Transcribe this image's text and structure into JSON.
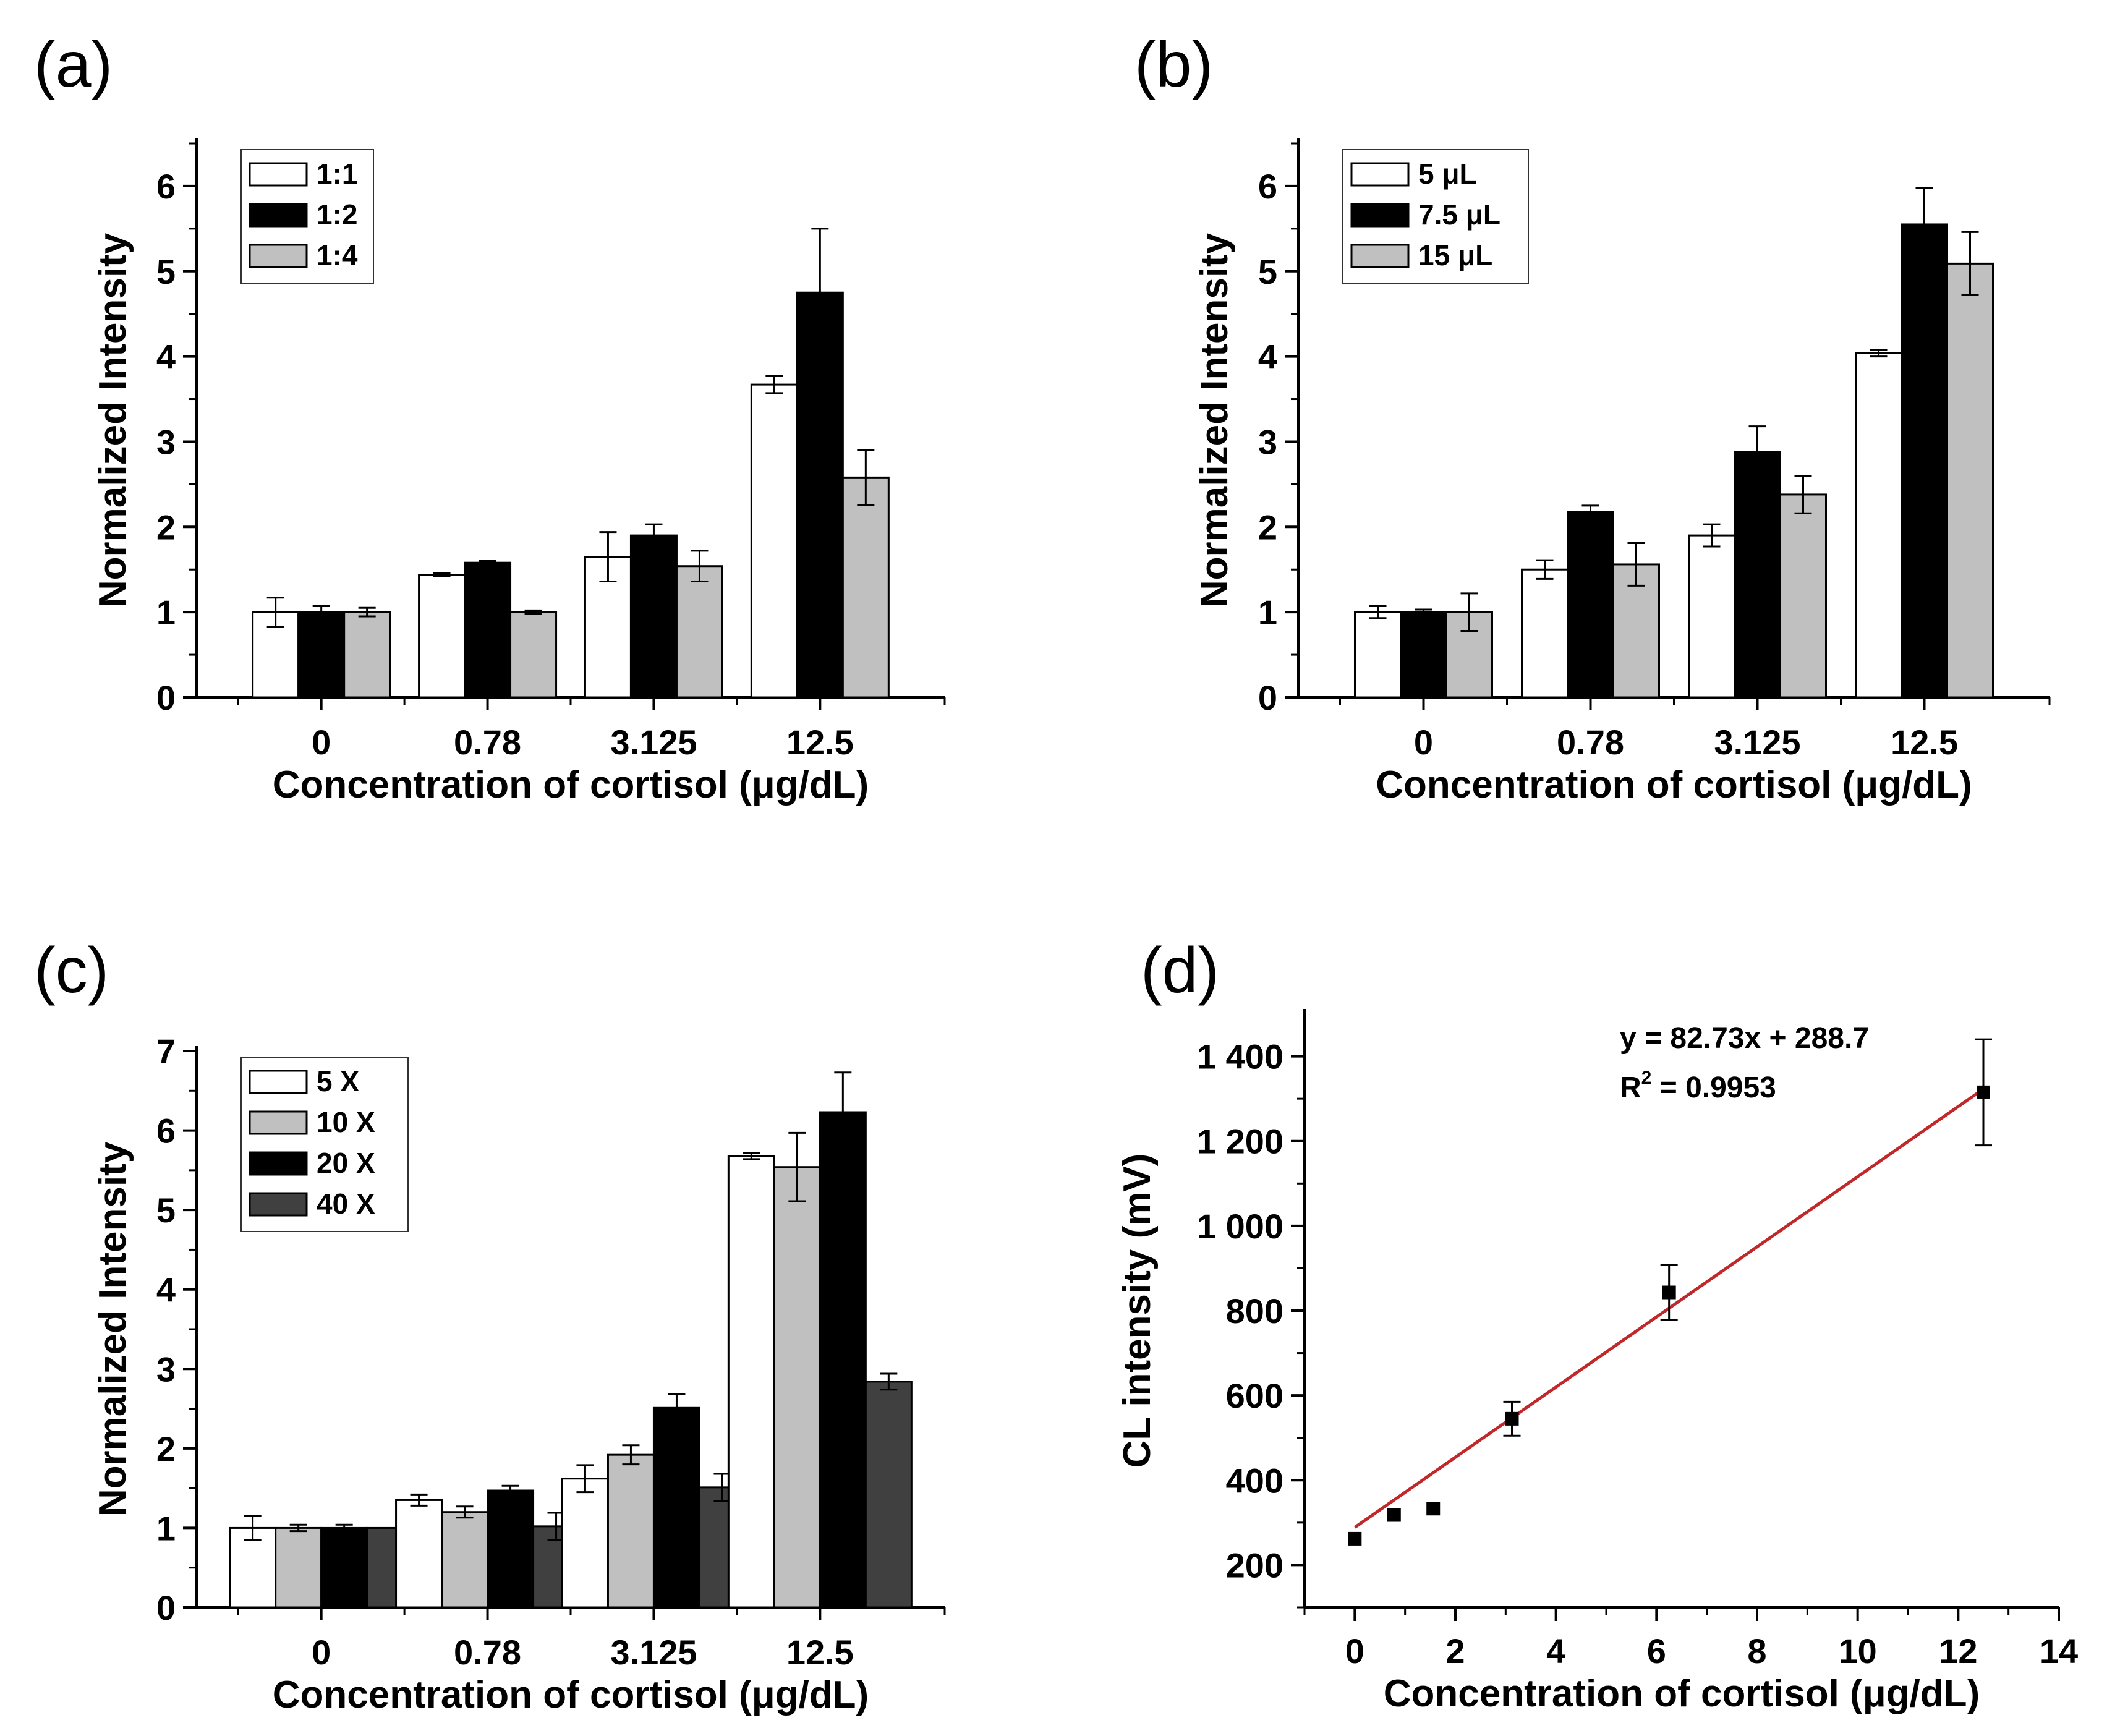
{
  "panels": [
    {
      "label": "(a)"
    },
    {
      "label": "(b)"
    },
    {
      "label": "(c)"
    },
    {
      "label": "(d)"
    }
  ],
  "chart_data": [
    {
      "type": "bar",
      "xlabel": "Concentration of cortisol (μg/dL)",
      "ylabel": "Normalized Intensity",
      "ylim": [
        0,
        6.5
      ],
      "yticks": [
        "0",
        "1",
        "2",
        "3",
        "4",
        "5",
        "6"
      ],
      "categories": [
        "0",
        "0.78",
        "3.125",
        "12.5"
      ],
      "legend_placement": "top-left",
      "series": [
        {
          "name": "1:1",
          "color": "#ffffff",
          "values": [
            1.0,
            1.44,
            1.65,
            3.67
          ],
          "errors": [
            0.17,
            0.02,
            0.29,
            0.1
          ]
        },
        {
          "name": "1:2",
          "color": "#000000",
          "values": [
            1.0,
            1.58,
            1.9,
            4.75
          ],
          "errors": [
            0.07,
            0.02,
            0.13,
            0.75
          ]
        },
        {
          "name": "1:4",
          "color": "#c0c0c0",
          "values": [
            1.0,
            1.0,
            1.54,
            2.58
          ],
          "errors": [
            0.05,
            0.02,
            0.18,
            0.32
          ]
        }
      ]
    },
    {
      "type": "bar",
      "xlabel": "Concentration of cortisol (μg/dL)",
      "ylabel": "Normalized Intensity",
      "ylim": [
        0,
        6.5
      ],
      "yticks": [
        "0",
        "1",
        "2",
        "3",
        "4",
        "5",
        "6"
      ],
      "categories": [
        "0",
        "0.78",
        "3.125",
        "12.5"
      ],
      "legend_placement": "top-left",
      "series": [
        {
          "name": "5 μL",
          "color": "#ffffff",
          "values": [
            1.0,
            1.5,
            1.9,
            4.04
          ],
          "errors": [
            0.07,
            0.11,
            0.13,
            0.04
          ]
        },
        {
          "name": "7.5 μL",
          "color": "#000000",
          "values": [
            1.0,
            2.18,
            2.88,
            5.55
          ],
          "errors": [
            0.03,
            0.07,
            0.3,
            0.43
          ]
        },
        {
          "name": "15 μL",
          "color": "#c0c0c0",
          "values": [
            1.0,
            1.56,
            2.38,
            5.09
          ],
          "errors": [
            0.22,
            0.25,
            0.22,
            0.37
          ]
        }
      ]
    },
    {
      "type": "bar",
      "xlabel": "Concentration of cortisol (μg/dL)",
      "ylabel": "Normalized Intensity",
      "ylim": [
        0,
        7
      ],
      "yticks": [
        "0",
        "1",
        "2",
        "3",
        "4",
        "5",
        "6",
        "7"
      ],
      "categories": [
        "0",
        "0.78",
        "3.125",
        "12.5"
      ],
      "legend_placement": "top-left",
      "series": [
        {
          "name": "5 X",
          "color": "#ffffff",
          "values": [
            1.0,
            1.35,
            1.62,
            5.68
          ],
          "errors": [
            0.15,
            0.07,
            0.17,
            0.04
          ]
        },
        {
          "name": "10 X",
          "color": "#c0c0c0",
          "values": [
            1.0,
            1.2,
            1.92,
            5.54
          ],
          "errors": [
            0.04,
            0.07,
            0.12,
            0.43
          ]
        },
        {
          "name": "20 X",
          "color": "#000000",
          "values": [
            1.0,
            1.47,
            2.51,
            6.23
          ],
          "errors": [
            0.04,
            0.06,
            0.17,
            0.5
          ]
        },
        {
          "name": "40 X",
          "color": "#404040",
          "values": [
            1.0,
            1.02,
            1.51,
            2.84
          ],
          "errors": [
            0.0,
            0.17,
            0.17,
            0.1
          ]
        }
      ]
    },
    {
      "type": "scatter",
      "xlabel": "Concentration of cortisol (μg/dL)",
      "ylabel": "CL intensity (mV)",
      "xlim": [
        -1,
        14
      ],
      "ylim": [
        100,
        1500
      ],
      "xticks": [
        0,
        2,
        4,
        6,
        8,
        10,
        12,
        14
      ],
      "xtick_labels": [
        "0",
        "2",
        "4",
        "6",
        "8",
        "10",
        "12",
        "14"
      ],
      "yticks": [
        200,
        400,
        600,
        800,
        1000,
        1200,
        1400
      ],
      "ytick_labels": [
        "200",
        "400",
        "600",
        "800",
        "1 000",
        "1 200",
        "1 400"
      ],
      "points": {
        "x": [
          0,
          0.78,
          1.56,
          3.125,
          6.25,
          12.5
        ],
        "y": [
          262,
          318,
          333,
          545,
          843,
          1315
        ],
        "errors": [
          0,
          0,
          0,
          40,
          65,
          125
        ]
      },
      "fit_line": {
        "slope": 82.73,
        "intercept": 288.7,
        "x_range": [
          0,
          12.5
        ],
        "color": "#c0282a"
      },
      "equation": "y = 82.73x + 288.7",
      "r2_label": "R",
      "r2_sup": "2",
      "r2_value": " = 0.9953"
    }
  ]
}
